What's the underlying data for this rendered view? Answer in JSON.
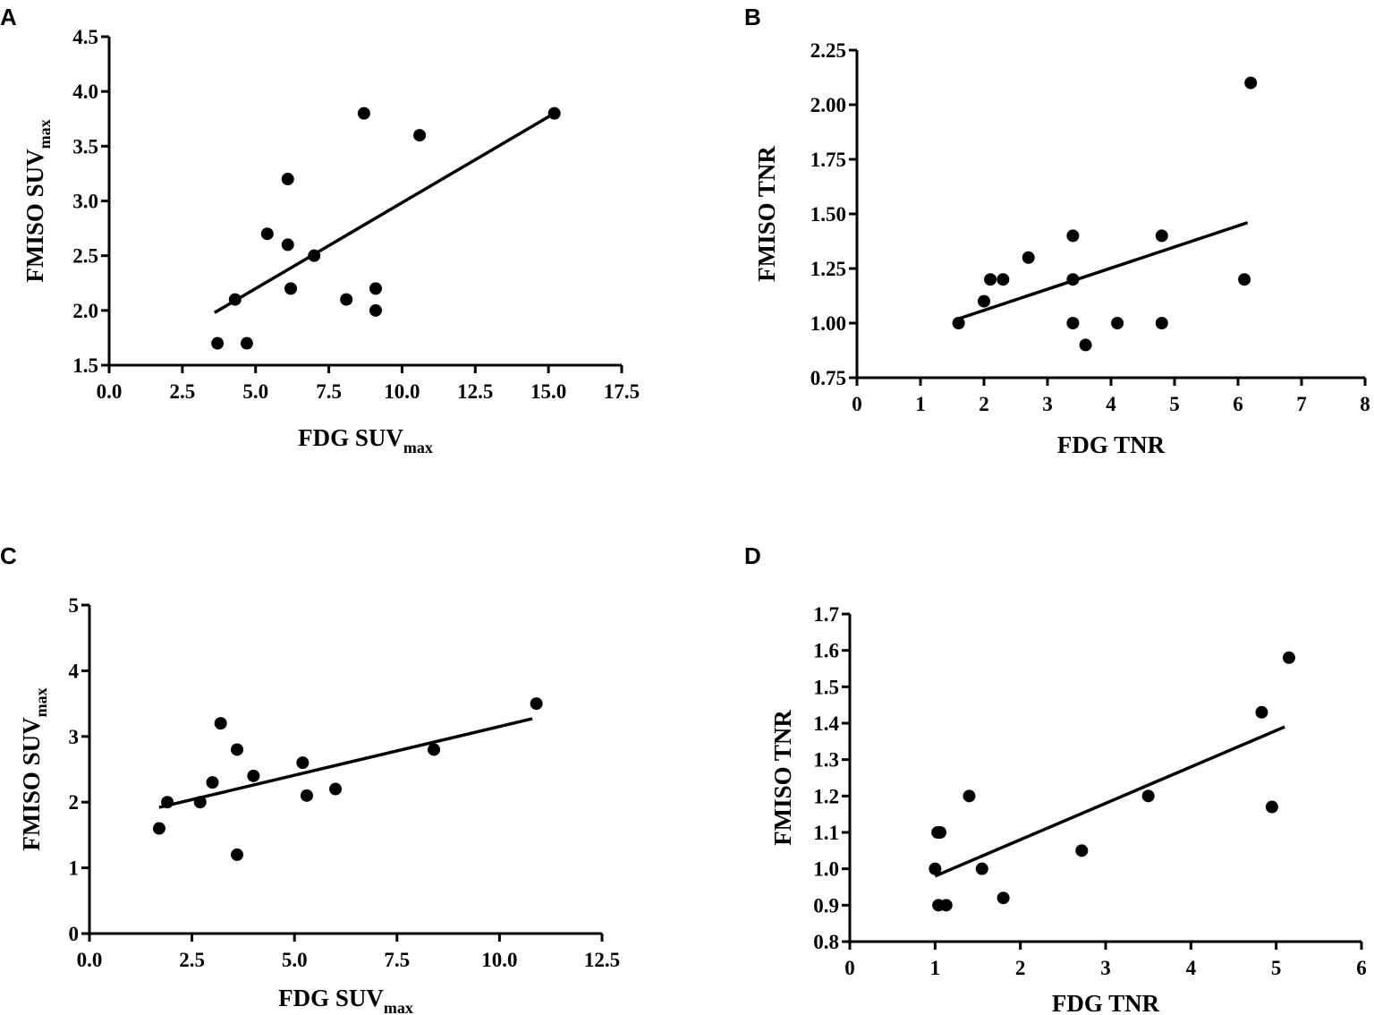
{
  "chart_data": [
    {
      "type": "scatter",
      "panel": "A",
      "xlabel": "FDG SUV",
      "xlabel_sub": "max",
      "ylabel": "FMISO SUV",
      "ylabel_sub": "max",
      "xlim": [
        0,
        17.5
      ],
      "ylim": [
        1.5,
        4.5
      ],
      "xticks": [
        "0.0",
        "2.5",
        "5.0",
        "7.5",
        "10.0",
        "12.5",
        "15.0",
        "17.5"
      ],
      "yticks": [
        "1.5",
        "2.0",
        "2.5",
        "3.0",
        "3.5",
        "4.0",
        "4.5"
      ],
      "x": [
        3.7,
        4.3,
        4.7,
        5.4,
        6.1,
        6.1,
        6.2,
        7.0,
        8.1,
        8.7,
        9.1,
        9.1,
        10.6,
        15.2
      ],
      "y": [
        1.7,
        2.1,
        1.7,
        2.7,
        3.2,
        2.6,
        2.2,
        2.5,
        2.1,
        3.8,
        2.2,
        2.0,
        3.6,
        3.8
      ],
      "fit": {
        "x": [
          3.6,
          15.2
        ],
        "y": [
          1.98,
          3.8
        ]
      }
    },
    {
      "type": "scatter",
      "panel": "B",
      "xlabel": "FDG TNR",
      "xlabel_sub": "",
      "ylabel": "FMISO TNR",
      "ylabel_sub": "",
      "xlim": [
        0,
        8
      ],
      "ylim": [
        0.75,
        2.25
      ],
      "xticks": [
        "0",
        "1",
        "2",
        "3",
        "4",
        "5",
        "6",
        "7",
        "8"
      ],
      "yticks": [
        "0.75",
        "1.00",
        "1.25",
        "1.50",
        "1.75",
        "2.00",
        "2.25"
      ],
      "x": [
        1.6,
        2.0,
        2.1,
        2.3,
        2.7,
        3.4,
        3.4,
        3.4,
        3.6,
        4.1,
        4.8,
        4.8,
        6.1,
        6.2
      ],
      "y": [
        1.0,
        1.1,
        1.2,
        1.2,
        1.3,
        1.4,
        1.2,
        1.0,
        0.9,
        1.0,
        1.4,
        1.0,
        1.2,
        2.1
      ],
      "fit": {
        "x": [
          1.6,
          6.15
        ],
        "y": [
          1.02,
          1.46
        ]
      }
    },
    {
      "type": "scatter",
      "panel": "C",
      "xlabel": "FDG SUV",
      "xlabel_sub": "max",
      "ylabel": "FMISO SUV",
      "ylabel_sub": "max",
      "xlim": [
        0,
        12.5
      ],
      "ylim": [
        0,
        5
      ],
      "xticks": [
        "0.0",
        "2.5",
        "5.0",
        "7.5",
        "10.0",
        "12.5"
      ],
      "yticks": [
        "0",
        "1",
        "2",
        "3",
        "4",
        "5"
      ],
      "x": [
        1.7,
        1.9,
        2.7,
        3.0,
        3.2,
        3.6,
        3.6,
        4.0,
        5.2,
        5.3,
        6.0,
        8.4,
        10.9
      ],
      "y": [
        1.6,
        2.0,
        2.0,
        2.3,
        3.2,
        2.8,
        1.2,
        2.4,
        2.6,
        2.1,
        2.2,
        2.8,
        3.5
      ],
      "fit": {
        "x": [
          1.7,
          10.8
        ],
        "y": [
          1.92,
          3.27
        ]
      }
    },
    {
      "type": "scatter",
      "panel": "D",
      "xlabel": "FDG TNR",
      "xlabel_sub": "",
      "ylabel": "FMISO TNR",
      "ylabel_sub": "",
      "xlim": [
        0,
        6
      ],
      "ylim": [
        0.8,
        1.7
      ],
      "xticks": [
        "0",
        "1",
        "2",
        "3",
        "4",
        "5",
        "6"
      ],
      "yticks": [
        "0.8",
        "0.9",
        "1.0",
        "1.1",
        "1.2",
        "1.3",
        "1.4",
        "1.5",
        "1.6",
        "1.7"
      ],
      "x": [
        1.0,
        1.03,
        1.06,
        1.04,
        1.13,
        1.4,
        1.55,
        1.8,
        2.72,
        3.5,
        4.83,
        4.95,
        5.15
      ],
      "y": [
        1.0,
        1.1,
        1.1,
        0.9,
        0.9,
        1.2,
        1.0,
        0.92,
        1.05,
        1.2,
        1.43,
        1.17,
        1.58
      ],
      "fit": {
        "x": [
          1.0,
          5.1
        ],
        "y": [
          0.98,
          1.39
        ]
      }
    }
  ]
}
